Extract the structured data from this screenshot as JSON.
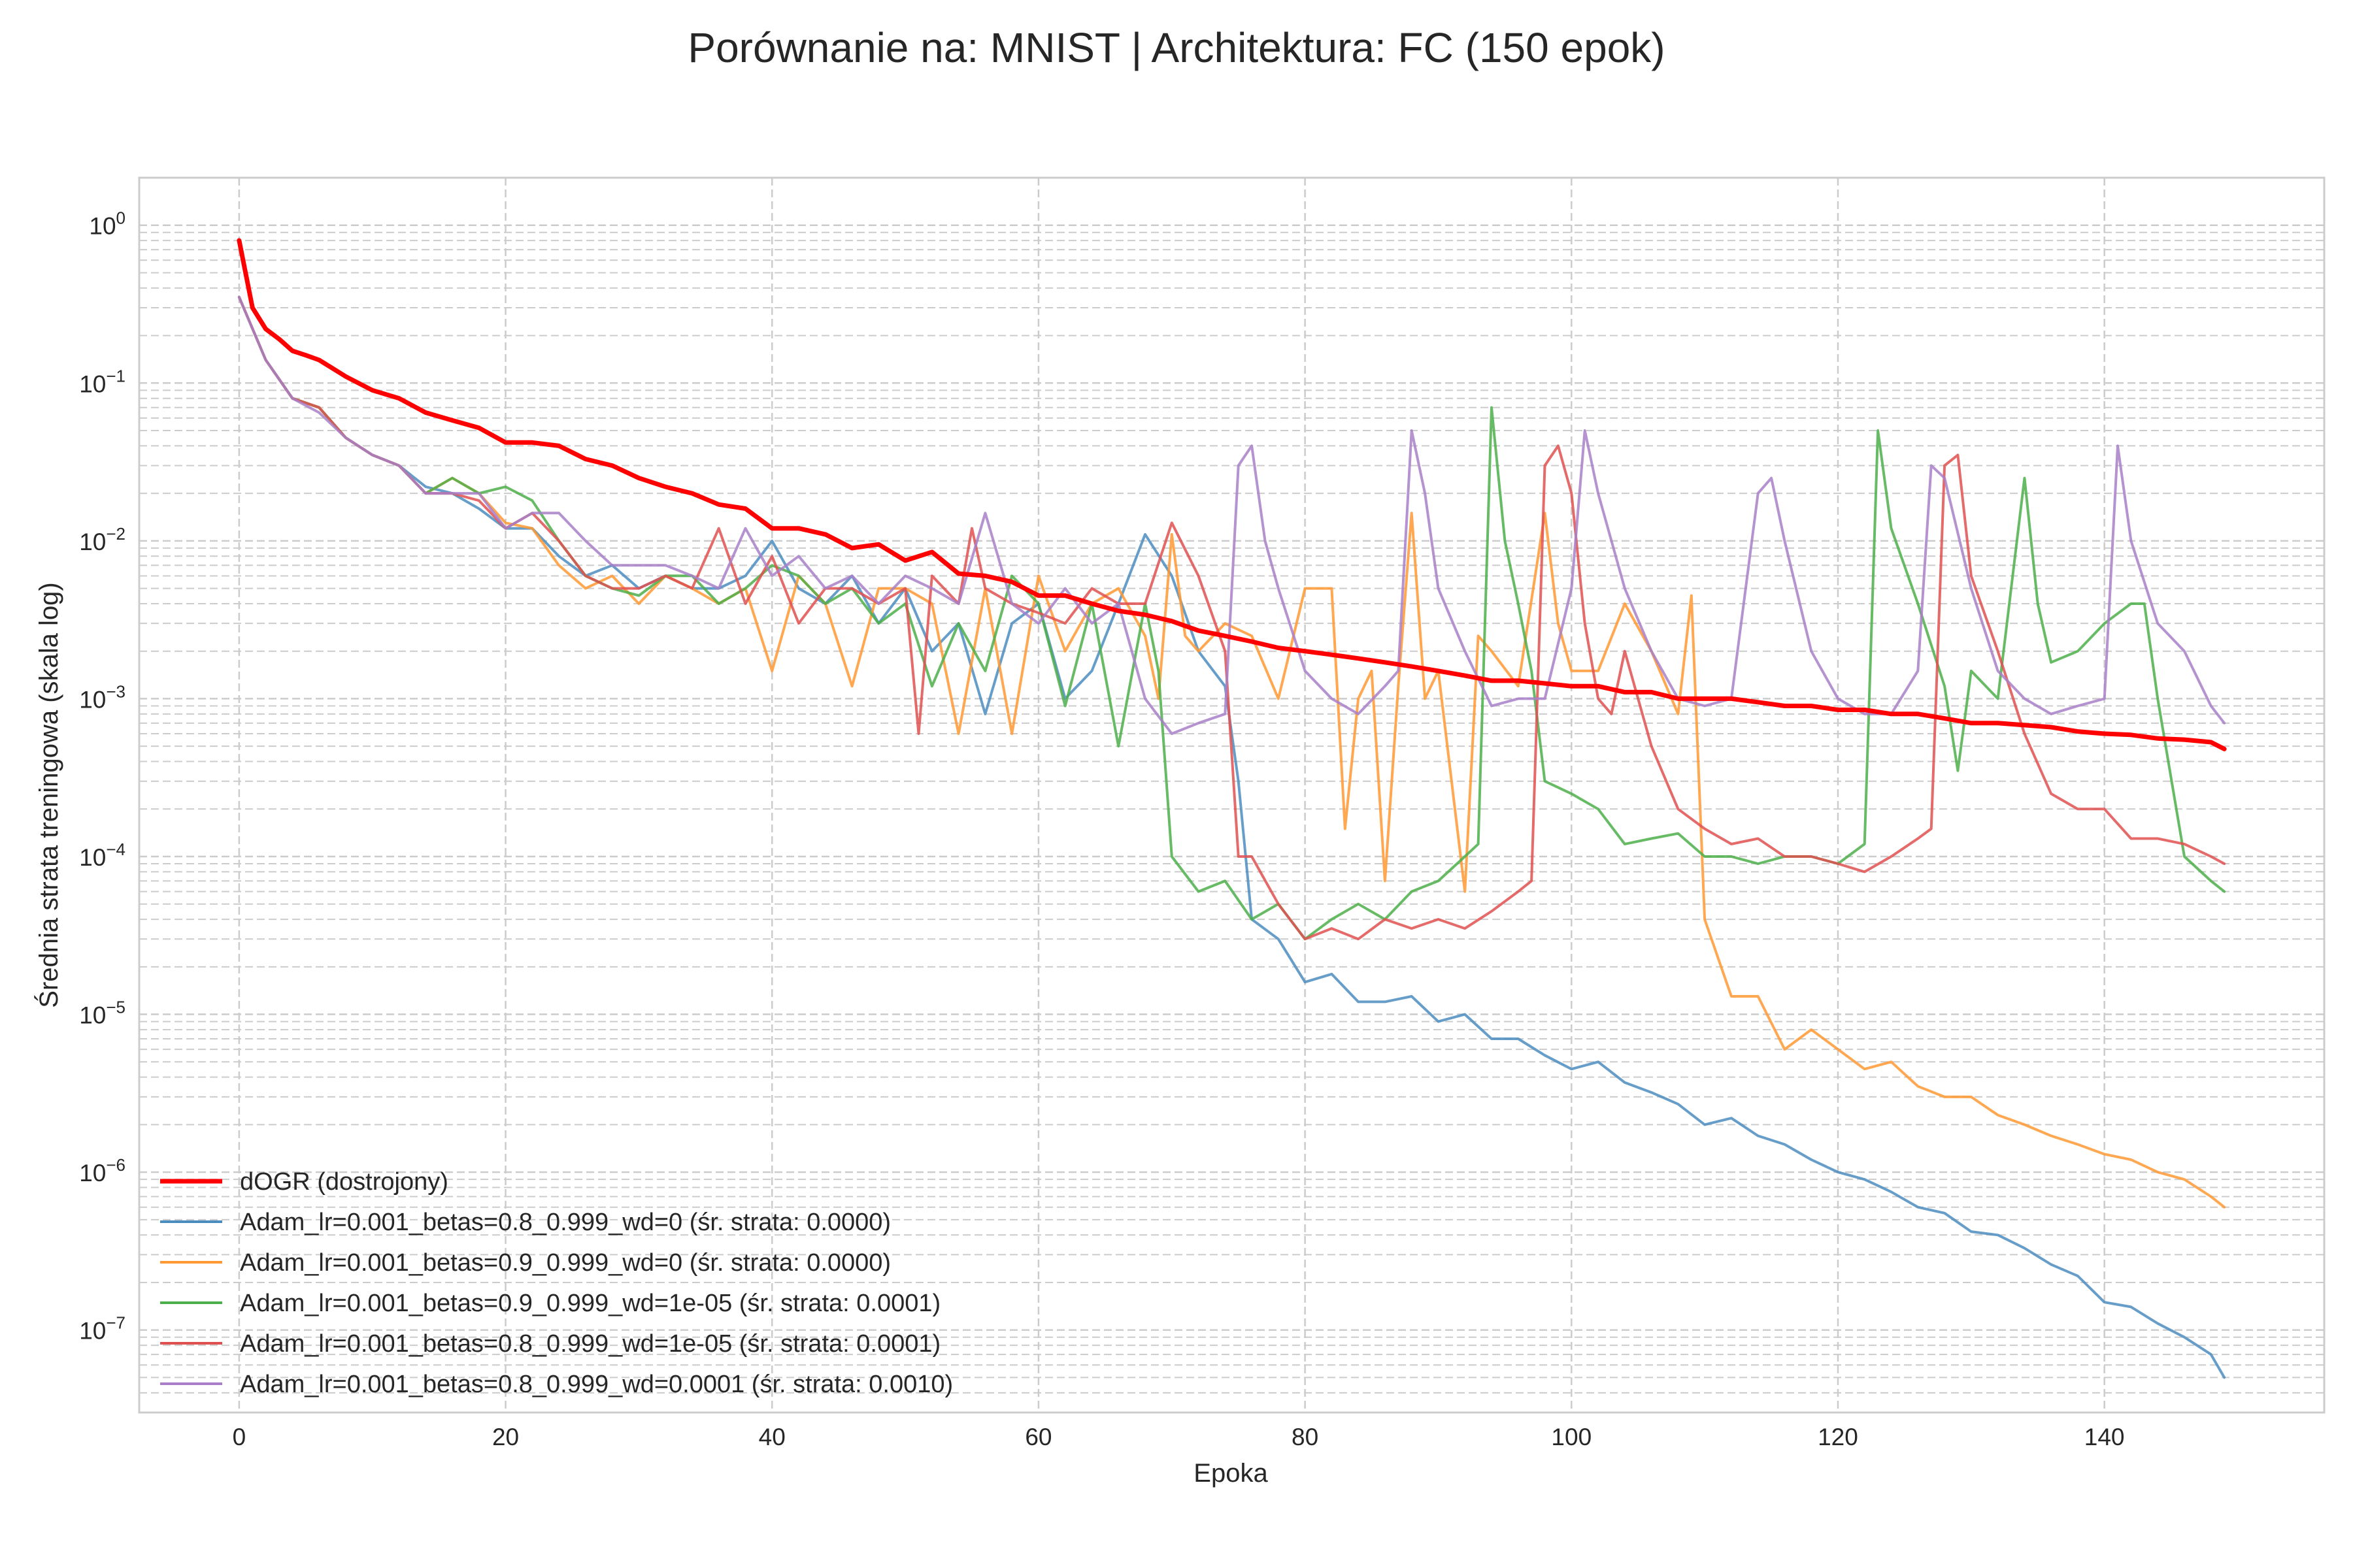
{
  "chart_data": {
    "type": "line",
    "title": "Porównanie na: MNIST | Architektura: FC (150 epok)",
    "xlabel": "Epoka",
    "ylabel": "Średnia strata treningowa (skala log)",
    "yscale": "log",
    "xlim": [
      -7.5,
      156.5
    ],
    "ylim": [
      3e-08,
      2
    ],
    "x_ticks": [
      0,
      20,
      40,
      60,
      80,
      100,
      120,
      140
    ],
    "y_ticks": [
      {
        "exp": -7,
        "label": "10",
        "sup": "−7"
      },
      {
        "exp": -6,
        "label": "10",
        "sup": "−6"
      },
      {
        "exp": -5,
        "label": "10",
        "sup": "−5"
      },
      {
        "exp": -4,
        "label": "10",
        "sup": "−4"
      },
      {
        "exp": -3,
        "label": "10",
        "sup": "−3"
      },
      {
        "exp": -2,
        "label": "10",
        "sup": "−2"
      },
      {
        "exp": -1,
        "label": "10",
        "sup": "−1"
      },
      {
        "exp": 0,
        "label": "10",
        "sup": "0"
      }
    ],
    "grid": true,
    "legend_position": "bottom-left",
    "series": [
      {
        "name": "dOGR (dostrojony)",
        "color": "#ff0000",
        "width": 7,
        "x": [
          0,
          1,
          2,
          3,
          4,
          5,
          6,
          8,
          10,
          12,
          14,
          16,
          18,
          20,
          22,
          24,
          26,
          28,
          30,
          32,
          34,
          36,
          38,
          40,
          42,
          44,
          46,
          48,
          50,
          52,
          54,
          56,
          58,
          60,
          62,
          64,
          66,
          68,
          70,
          72,
          74,
          76,
          78,
          80,
          82,
          84,
          86,
          88,
          90,
          92,
          94,
          96,
          98,
          100,
          102,
          104,
          106,
          108,
          110,
          112,
          114,
          116,
          118,
          120,
          122,
          124,
          126,
          128,
          130,
          132,
          134,
          136,
          138,
          140,
          142,
          144,
          146,
          148,
          149
        ],
        "y": [
          0.8,
          0.3,
          0.22,
          0.19,
          0.16,
          0.15,
          0.14,
          0.11,
          0.09,
          0.08,
          0.065,
          0.058,
          0.052,
          0.042,
          0.042,
          0.04,
          0.033,
          0.03,
          0.025,
          0.022,
          0.02,
          0.017,
          0.016,
          0.012,
          0.012,
          0.011,
          0.009,
          0.0095,
          0.0075,
          0.0085,
          0.0062,
          0.006,
          0.0055,
          0.0045,
          0.0045,
          0.004,
          0.0036,
          0.0034,
          0.0031,
          0.0027,
          0.0025,
          0.0023,
          0.0021,
          0.002,
          0.0019,
          0.0018,
          0.0017,
          0.0016,
          0.0015,
          0.0014,
          0.0013,
          0.0013,
          0.00125,
          0.0012,
          0.0012,
          0.0011,
          0.0011,
          0.001,
          0.001,
          0.001,
          0.00095,
          0.0009,
          0.0009,
          0.00085,
          0.00085,
          0.0008,
          0.0008,
          0.00075,
          0.0007,
          0.0007,
          0.00068,
          0.00066,
          0.00062,
          0.0006,
          0.00059,
          0.00056,
          0.00055,
          0.00053,
          0.00048
        ]
      },
      {
        "name": "Adam_lr=0.001_betas=0.8_0.999_wd=0 (śr. strata: 0.0000)",
        "color": "#4c8dbf",
        "width": 4,
        "x": [
          0,
          2,
          4,
          6,
          8,
          10,
          12,
          14,
          16,
          18,
          20,
          22,
          24,
          26,
          28,
          30,
          32,
          34,
          36,
          38,
          40,
          42,
          44,
          46,
          48,
          50,
          52,
          54,
          56,
          58,
          60,
          62,
          64,
          66,
          68,
          70,
          72,
          74,
          75,
          76,
          78,
          80,
          82,
          84,
          86,
          88,
          90,
          92,
          94,
          96,
          98,
          100,
          102,
          104,
          106,
          108,
          110,
          112,
          114,
          116,
          118,
          120,
          122,
          124,
          126,
          128,
          130,
          132,
          134,
          136,
          138,
          140,
          142,
          144,
          146,
          148,
          149
        ],
        "y": [
          0.35,
          0.14,
          0.08,
          0.07,
          0.045,
          0.035,
          0.03,
          0.022,
          0.02,
          0.016,
          0.012,
          0.012,
          0.008,
          0.006,
          0.007,
          0.005,
          0.006,
          0.005,
          0.005,
          0.006,
          0.01,
          0.005,
          0.004,
          0.006,
          0.003,
          0.005,
          0.002,
          0.003,
          0.0008,
          0.003,
          0.004,
          0.001,
          0.0015,
          0.004,
          0.011,
          0.006,
          0.002,
          0.0012,
          0.0003,
          4e-05,
          3e-05,
          1.6e-05,
          1.8e-05,
          1.2e-05,
          1.2e-05,
          1.3e-05,
          9e-06,
          1e-05,
          7e-06,
          7e-06,
          5.5e-06,
          4.5e-06,
          5e-06,
          3.7e-06,
          3.2e-06,
          2.7e-06,
          2e-06,
          2.2e-06,
          1.7e-06,
          1.5e-06,
          1.2e-06,
          1e-06,
          9e-07,
          7.5e-07,
          6e-07,
          5.5e-07,
          4.2e-07,
          4e-07,
          3.3e-07,
          2.6e-07,
          2.2e-07,
          1.5e-07,
          1.4e-07,
          1.1e-07,
          9e-08,
          7e-08,
          5e-08
        ]
      },
      {
        "name": "Adam_lr=0.001_betas=0.9_0.999_wd=0 (śr. strata: 0.0000)",
        "color": "#ff9933",
        "width": 4,
        "x": [
          0,
          2,
          4,
          6,
          8,
          10,
          12,
          14,
          16,
          18,
          20,
          22,
          24,
          26,
          28,
          30,
          32,
          34,
          36,
          38,
          40,
          42,
          44,
          46,
          48,
          50,
          52,
          54,
          56,
          58,
          60,
          62,
          64,
          66,
          68,
          69,
          70,
          71,
          72,
          74,
          76,
          78,
          80,
          82,
          83,
          84,
          85,
          86,
          87,
          88,
          89,
          90,
          92,
          93,
          94,
          96,
          98,
          99,
          100,
          102,
          104,
          106,
          108,
          109,
          110,
          112,
          114,
          116,
          118,
          120,
          122,
          124,
          126,
          128,
          130,
          132,
          134,
          136,
          138,
          140,
          142,
          144,
          146,
          148,
          149
        ],
        "y": [
          0.35,
          0.14,
          0.08,
          0.07,
          0.045,
          0.035,
          0.03,
          0.02,
          0.025,
          0.02,
          0.013,
          0.012,
          0.007,
          0.005,
          0.006,
          0.004,
          0.006,
          0.005,
          0.004,
          0.005,
          0.0015,
          0.006,
          0.004,
          0.0012,
          0.005,
          0.005,
          0.004,
          0.0006,
          0.005,
          0.0006,
          0.006,
          0.002,
          0.004,
          0.005,
          0.0025,
          0.001,
          0.011,
          0.0025,
          0.002,
          0.003,
          0.0025,
          0.001,
          0.005,
          0.005,
          0.00015,
          0.001,
          0.0015,
          7e-05,
          0.0012,
          0.015,
          0.001,
          0.0015,
          6e-05,
          0.0025,
          0.002,
          0.0012,
          0.015,
          0.003,
          0.0015,
          0.0015,
          0.004,
          0.002,
          0.0008,
          0.0045,
          4e-05,
          1.3e-05,
          1.3e-05,
          6e-06,
          8e-06,
          6e-06,
          4.5e-06,
          5e-06,
          3.5e-06,
          3e-06,
          3e-06,
          2.3e-06,
          2e-06,
          1.7e-06,
          1.5e-06,
          1.3e-06,
          1.2e-06,
          1e-06,
          9e-07,
          7e-07,
          6e-07
        ]
      },
      {
        "name": "Adam_lr=0.001_betas=0.9_0.999_wd=1e-05 (śr. strata: 0.0001)",
        "color": "#4daf4a",
        "width": 4,
        "x": [
          0,
          2,
          4,
          6,
          8,
          10,
          12,
          14,
          16,
          18,
          20,
          22,
          24,
          26,
          28,
          30,
          32,
          34,
          36,
          38,
          40,
          42,
          44,
          46,
          48,
          50,
          52,
          54,
          56,
          58,
          60,
          62,
          64,
          66,
          68,
          69,
          70,
          72,
          74,
          76,
          78,
          80,
          82,
          84,
          86,
          88,
          90,
          92,
          93,
          94,
          95,
          96,
          97,
          98,
          100,
          102,
          104,
          106,
          108,
          110,
          112,
          114,
          116,
          118,
          120,
          122,
          123,
          124,
          126,
          128,
          129,
          130,
          132,
          134,
          135,
          136,
          138,
          140,
          142,
          143,
          144,
          146,
          148,
          149
        ],
        "y": [
          0.35,
          0.14,
          0.08,
          0.07,
          0.045,
          0.035,
          0.03,
          0.02,
          0.025,
          0.02,
          0.022,
          0.018,
          0.01,
          0.006,
          0.005,
          0.0045,
          0.006,
          0.006,
          0.004,
          0.005,
          0.007,
          0.006,
          0.004,
          0.005,
          0.003,
          0.004,
          0.0012,
          0.003,
          0.0015,
          0.006,
          0.004,
          0.0009,
          0.004,
          0.0005,
          0.004,
          0.0015,
          0.0001,
          6e-05,
          7e-05,
          4e-05,
          5e-05,
          3e-05,
          4e-05,
          5e-05,
          4e-05,
          6e-05,
          7e-05,
          0.0001,
          0.00012,
          0.07,
          0.01,
          0.004,
          0.0015,
          0.0003,
          0.00025,
          0.0002,
          0.00012,
          0.00013,
          0.00014,
          0.0001,
          0.0001,
          9e-05,
          0.0001,
          0.0001,
          9e-05,
          0.00012,
          0.05,
          0.012,
          0.004,
          0.0012,
          0.00035,
          0.0015,
          0.001,
          0.025,
          0.004,
          0.0017,
          0.002,
          0.003,
          0.004,
          0.004,
          0.001,
          0.0001,
          7e-05,
          6e-05
        ]
      },
      {
        "name": "Adam_lr=0.001_betas=0.8_0.999_wd=1e-05 (śr. strata: 0.0001)",
        "color": "#e05050",
        "width": 4,
        "x": [
          0,
          2,
          4,
          6,
          8,
          10,
          12,
          14,
          16,
          18,
          20,
          22,
          24,
          26,
          28,
          30,
          32,
          34,
          36,
          38,
          40,
          42,
          44,
          46,
          48,
          50,
          51,
          52,
          54,
          55,
          56,
          58,
          60,
          62,
          64,
          66,
          68,
          70,
          72,
          74,
          75,
          76,
          78,
          80,
          82,
          84,
          86,
          88,
          90,
          92,
          94,
          96,
          97,
          98,
          99,
          100,
          101,
          102,
          103,
          104,
          106,
          108,
          110,
          112,
          114,
          116,
          118,
          120,
          122,
          124,
          126,
          127,
          128,
          129,
          130,
          132,
          134,
          136,
          138,
          140,
          142,
          144,
          146,
          148,
          149
        ],
        "y": [
          0.35,
          0.14,
          0.08,
          0.07,
          0.045,
          0.035,
          0.03,
          0.02,
          0.02,
          0.018,
          0.012,
          0.015,
          0.01,
          0.006,
          0.005,
          0.005,
          0.006,
          0.005,
          0.012,
          0.004,
          0.008,
          0.003,
          0.005,
          0.005,
          0.004,
          0.005,
          0.0006,
          0.006,
          0.004,
          0.012,
          0.005,
          0.004,
          0.0035,
          0.003,
          0.005,
          0.004,
          0.004,
          0.013,
          0.006,
          0.002,
          0.0001,
          0.0001,
          5e-05,
          3e-05,
          3.5e-05,
          3e-05,
          4e-05,
          3.5e-05,
          4e-05,
          3.5e-05,
          4.5e-05,
          6e-05,
          7e-05,
          0.03,
          0.04,
          0.02,
          0.003,
          0.001,
          0.0008,
          0.002,
          0.0005,
          0.0002,
          0.00015,
          0.00012,
          0.00013,
          0.0001,
          0.0001,
          9e-05,
          8e-05,
          0.0001,
          0.00013,
          0.00015,
          0.03,
          0.035,
          0.006,
          0.002,
          0.0006,
          0.00025,
          0.0002,
          0.0002,
          0.00013,
          0.00013,
          0.00012,
          0.0001,
          9e-05
        ]
      },
      {
        "name": "Adam_lr=0.001_betas=0.8_0.999_wd=0.0001 (śr. strata: 0.0010)",
        "color": "#a87fc8",
        "width": 4,
        "x": [
          0,
          2,
          4,
          6,
          8,
          10,
          12,
          14,
          16,
          18,
          20,
          22,
          24,
          26,
          28,
          30,
          32,
          34,
          36,
          38,
          40,
          42,
          44,
          46,
          48,
          50,
          52,
          54,
          56,
          58,
          60,
          62,
          64,
          66,
          68,
          70,
          72,
          74,
          75,
          76,
          77,
          78,
          80,
          82,
          84,
          86,
          87,
          88,
          89,
          90,
          92,
          94,
          96,
          98,
          100,
          101,
          102,
          104,
          106,
          108,
          110,
          112,
          114,
          115,
          116,
          118,
          120,
          122,
          124,
          126,
          127,
          128,
          130,
          132,
          134,
          136,
          138,
          140,
          141,
          142,
          144,
          146,
          148,
          149
        ],
        "y": [
          0.35,
          0.14,
          0.08,
          0.065,
          0.045,
          0.035,
          0.03,
          0.02,
          0.02,
          0.02,
          0.012,
          0.015,
          0.015,
          0.01,
          0.007,
          0.007,
          0.007,
          0.006,
          0.005,
          0.012,
          0.006,
          0.008,
          0.005,
          0.006,
          0.004,
          0.006,
          0.005,
          0.004,
          0.015,
          0.004,
          0.003,
          0.005,
          0.003,
          0.004,
          0.001,
          0.0006,
          0.0007,
          0.0008,
          0.03,
          0.04,
          0.01,
          0.005,
          0.0015,
          0.001,
          0.0008,
          0.0012,
          0.0015,
          0.05,
          0.02,
          0.005,
          0.002,
          0.0009,
          0.001,
          0.001,
          0.005,
          0.05,
          0.02,
          0.005,
          0.002,
          0.001,
          0.0009,
          0.001,
          0.02,
          0.025,
          0.01,
          0.002,
          0.001,
          0.0008,
          0.0008,
          0.0015,
          0.03,
          0.025,
          0.005,
          0.0015,
          0.001,
          0.0008,
          0.0009,
          0.001,
          0.04,
          0.01,
          0.003,
          0.002,
          0.0009,
          0.0007
        ]
      }
    ]
  }
}
